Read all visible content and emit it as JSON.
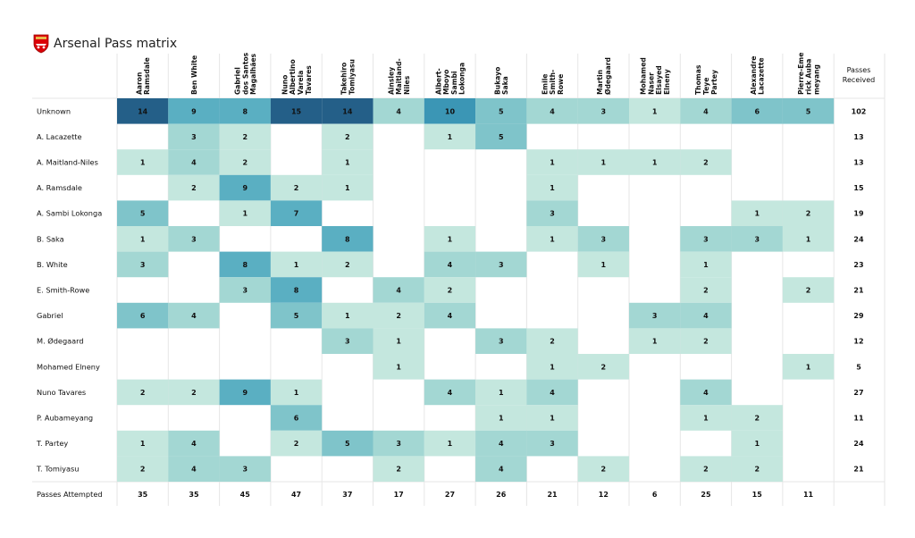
{
  "chart_data": {
    "type": "heatmap",
    "title": "Arsenal Pass matrix",
    "columns": [
      "Aaron Ramsdale",
      "Ben White",
      "Gabriel dos Santos Magalhães",
      "Nuno Albertino Varela Tavares",
      "Takehiro Tomiyasu",
      "Ainsley Maitland-Niles",
      "Albert-Mboyo Sambi Lokonga",
      "Bukayo Saka",
      "Emile Smith-Rowe",
      "Martin Ødegaard",
      "Mohamed Naser Elsayed Elneny",
      "Thomas Teye Partey",
      "Alexandre Lacazette",
      "Pierre-Emerick Aubameyang"
    ],
    "column_header_lines": [
      [
        "Aaron",
        "Ramsdale"
      ],
      [
        "Ben White"
      ],
      [
        "Gabriel",
        "dos Santos",
        "Magalhães"
      ],
      [
        "Nuno",
        "Albertino",
        "Varela",
        "Tavares"
      ],
      [
        "Takehiro",
        "Tomiyasu"
      ],
      [
        "Ainsley",
        "Maitland-",
        "Niles"
      ],
      [
        "Albert-",
        "Mboyo",
        "Sambi",
        "Lokonga"
      ],
      [
        "Bukayo",
        "Saka"
      ],
      [
        "Emile",
        "Smith-",
        "Rowe"
      ],
      [
        "Martin",
        "Ødegaard"
      ],
      [
        "Mohamed",
        "Naser",
        "Elsayed",
        "Elneny"
      ],
      [
        "Thomas",
        "Teye",
        "Partey"
      ],
      [
        "Alexandre",
        "Lacazette"
      ],
      [
        "Pierre-Eme",
        "rick Auba",
        "meyang"
      ]
    ],
    "rows": [
      "Unknown",
      "A. Lacazette",
      "A. Maitland-Niles",
      "A. Ramsdale",
      "A. Sambi Lokonga",
      "B. Saka",
      "B. White",
      "E. Smith-Rowe",
      "Gabriel",
      "M. Ødegaard",
      "Mohamed Elneny",
      "Nuno Tavares",
      "P. Aubameyang",
      "T. Partey",
      "T. Tomiyasu"
    ],
    "values": [
      [
        14,
        9,
        8,
        15,
        14,
        4,
        10,
        5,
        4,
        3,
        1,
        4,
        6,
        5
      ],
      [
        null,
        3,
        2,
        null,
        2,
        null,
        1,
        5,
        null,
        null,
        null,
        null,
        null,
        null
      ],
      [
        1,
        4,
        2,
        null,
        1,
        null,
        null,
        null,
        1,
        1,
        1,
        2,
        null,
        null
      ],
      [
        null,
        2,
        9,
        2,
        1,
        null,
        null,
        null,
        1,
        null,
        null,
        null,
        null,
        null
      ],
      [
        5,
        null,
        1,
        7,
        null,
        null,
        null,
        null,
        3,
        null,
        null,
        null,
        1,
        2
      ],
      [
        1,
        3,
        null,
        null,
        8,
        null,
        1,
        null,
        1,
        3,
        null,
        3,
        3,
        1
      ],
      [
        3,
        null,
        8,
        1,
        2,
        null,
        4,
        3,
        null,
        1,
        null,
        1,
        null,
        null
      ],
      [
        null,
        null,
        3,
        8,
        null,
        4,
        2,
        null,
        null,
        null,
        null,
        2,
        null,
        2
      ],
      [
        6,
        4,
        null,
        5,
        1,
        2,
        4,
        null,
        null,
        null,
        3,
        4,
        null,
        null
      ],
      [
        null,
        null,
        null,
        null,
        3,
        1,
        null,
        3,
        2,
        null,
        1,
        2,
        null,
        null
      ],
      [
        null,
        null,
        null,
        null,
        null,
        1,
        null,
        null,
        1,
        2,
        null,
        null,
        null,
        1
      ],
      [
        2,
        2,
        9,
        1,
        null,
        null,
        4,
        1,
        4,
        null,
        null,
        4,
        null,
        null
      ],
      [
        null,
        null,
        null,
        6,
        null,
        null,
        null,
        1,
        1,
        null,
        null,
        1,
        2,
        null
      ],
      [
        1,
        4,
        null,
        2,
        5,
        3,
        1,
        4,
        3,
        null,
        null,
        null,
        1,
        null
      ],
      [
        2,
        4,
        3,
        null,
        null,
        2,
        null,
        4,
        null,
        2,
        null,
        2,
        2,
        null
      ]
    ],
    "totals_header_lines": [
      "Passes",
      "Received"
    ],
    "passes_received": [
      102,
      13,
      13,
      15,
      19,
      24,
      23,
      21,
      29,
      12,
      5,
      27,
      11,
      24,
      21
    ],
    "attempted_label": "Passes Attempted",
    "passes_attempted": [
      35,
      35,
      45,
      47,
      37,
      17,
      27,
      26,
      21,
      12,
      6,
      25,
      15,
      11
    ],
    "colors": {
      "scale": [
        "#c4e7de",
        "#a3d7d3",
        "#7fc4ca",
        "#5aafc2",
        "#3b96b5",
        "#2d79a0",
        "#245f88"
      ],
      "grid": "#e6e6e6"
    }
  }
}
